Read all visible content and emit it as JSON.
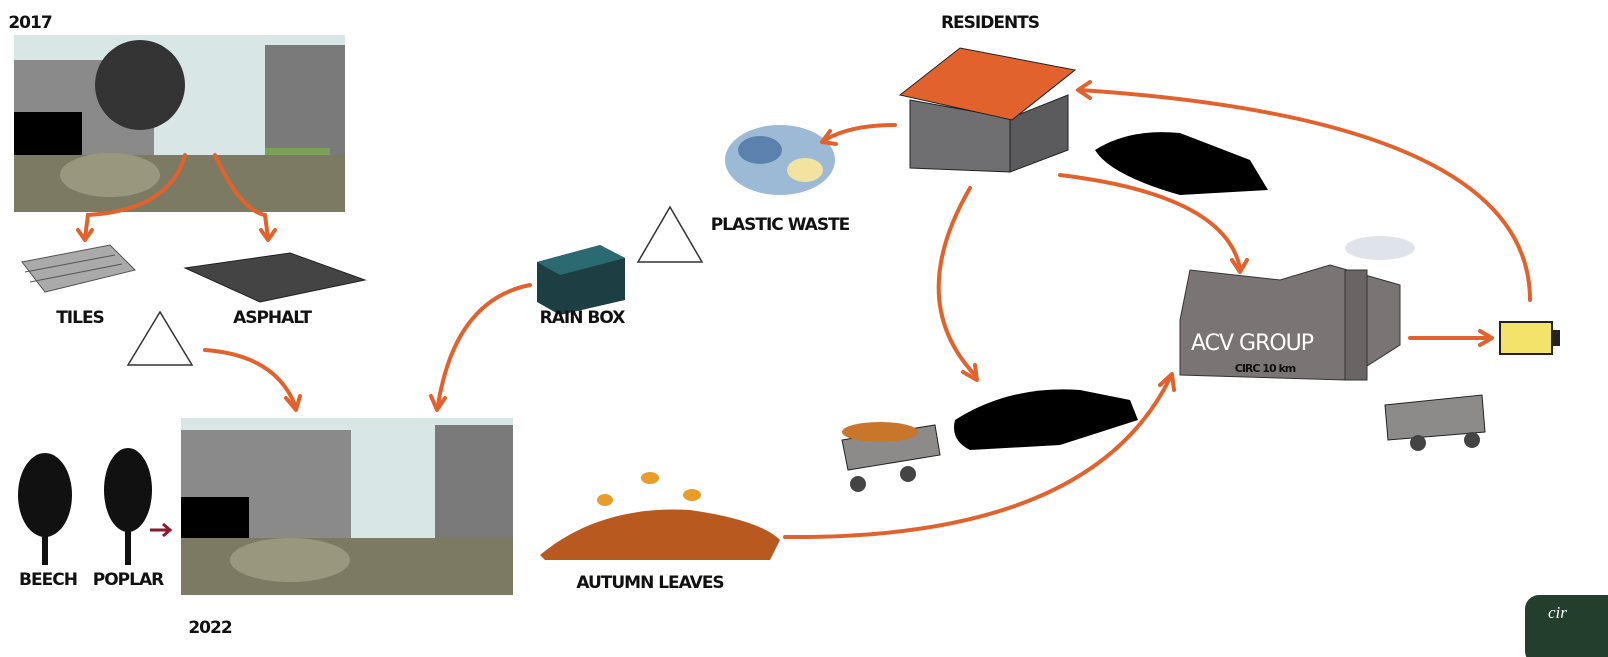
{
  "labels": {
    "year_before": "2017",
    "year_after": "2022",
    "residents": "RESIDENTS",
    "plastic_waste": "PLASTIC WASTE",
    "rain_box": "RAIN BOX",
    "tiles": "TILES",
    "asphalt": "ASPHALT",
    "beech": "BEECH",
    "poplar": "POPLAR",
    "autumn_leaves": "AUTUMN LEAVES",
    "factory": "ACV GROUP",
    "distance": "CIRC 10 km",
    "badge": "cir"
  }
}
